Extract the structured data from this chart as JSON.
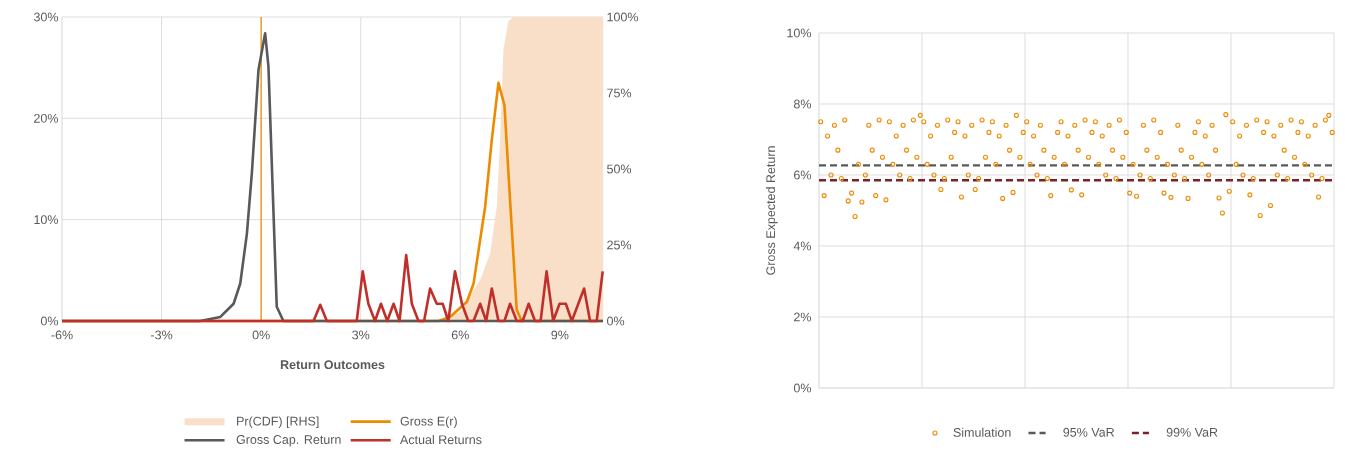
{
  "chart_data": [
    {
      "type": "line",
      "xlabel": "Return Outcomes",
      "xlim": [
        -6,
        10.3
      ],
      "xticks": [
        {
          "value": -6,
          "label": "-6%"
        },
        {
          "value": -3,
          "label": "-3%"
        },
        {
          "value": 0,
          "label": "0%"
        },
        {
          "value": 3,
          "label": "3%"
        },
        {
          "value": 6,
          "label": "6%"
        },
        {
          "value": 9,
          "label": "9%"
        }
      ],
      "ylim": [
        0,
        30
      ],
      "yticks": [
        {
          "value": 0,
          "label": "0%"
        },
        {
          "value": 10,
          "label": "10%"
        },
        {
          "value": 20,
          "label": "20%"
        },
        {
          "value": 30,
          "label": "30%"
        }
      ],
      "y2lim": [
        0,
        100
      ],
      "y2ticks": [
        {
          "value": 0,
          "label": "0%"
        },
        {
          "value": 25,
          "label": "25%"
        },
        {
          "value": 50,
          "label": "50%"
        },
        {
          "value": 75,
          "label": "75%"
        },
        {
          "value": 100,
          "label": "100%"
        }
      ],
      "grid": true,
      "legend": "bottom",
      "ref_lines": [
        {
          "axis": "x",
          "value": 0,
          "color": "#ed8b00"
        }
      ],
      "series": [
        {
          "name": "Pr(CDF) [RHS]",
          "type": "area",
          "axis": "y2",
          "color": "#fadfc8",
          "x": [
            -6,
            5.44,
            6.1,
            6.2,
            6.6,
            6.9,
            7.1,
            7.2,
            7.3,
            7.45,
            7.6,
            10.3
          ],
          "values": [
            0,
            0,
            3.6,
            6.9,
            13.5,
            22.3,
            37.7,
            59.7,
            89.3,
            98.7,
            100,
            100
          ]
        },
        {
          "name": "Gross E(r)",
          "type": "line",
          "color": "#ed8b00",
          "x": [
            -6,
            5.34,
            5.69,
            6.2,
            6.4,
            6.75,
            6.95,
            7.15,
            7.33,
            7.5,
            7.7,
            7.85,
            10.3
          ],
          "values": [
            0,
            0,
            0.4,
            1.9,
            3.7,
            11.3,
            17.9,
            23.5,
            21.3,
            11.9,
            1.1,
            0,
            0
          ]
        },
        {
          "name": "Gross Cap. Return",
          "type": "line",
          "color": "#595959",
          "x": [
            -6,
            -1.84,
            -1.23,
            -0.83,
            -0.63,
            -0.43,
            -0.28,
            -0.08,
            0.12,
            0.22,
            0.47,
            0.67,
            10.3
          ],
          "values": [
            0,
            0,
            0.4,
            1.7,
            3.7,
            8.6,
            14.6,
            24.8,
            28.4,
            25.1,
            1.4,
            0,
            0
          ]
        },
        {
          "name": "Actual Returns",
          "type": "line",
          "color": "#c0302a",
          "x": [
            -6,
            1.58,
            1.78,
            1.98,
            2.88,
            3.06,
            3.23,
            3.43,
            3.61,
            3.8,
            3.99,
            4.17,
            4.37,
            4.54,
            4.74,
            4.91,
            5.09,
            5.29,
            5.47,
            5.64,
            5.84,
            6.05,
            6.24,
            6.4,
            6.6,
            6.78,
            6.95,
            7.15,
            7.33,
            7.5,
            7.7,
            7.88,
            8.06,
            8.25,
            8.42,
            8.6,
            8.8,
            8.99,
            9.18,
            9.36,
            9.73,
            9.91,
            10.11,
            10.29
          ],
          "values": [
            0,
            0,
            1.6,
            0,
            0,
            4.9,
            1.7,
            0,
            1.7,
            0,
            1.7,
            0,
            6.5,
            1.7,
            0,
            0,
            3.2,
            1.7,
            1.7,
            0,
            4.9,
            1.7,
            0,
            0,
            1.7,
            0,
            3.2,
            0,
            0,
            1.7,
            0,
            0,
            1.7,
            0,
            0,
            4.9,
            0,
            1.7,
            1.7,
            0,
            3.2,
            0,
            0,
            4.9
          ]
        }
      ]
    },
    {
      "type": "scatter",
      "ylabel": "Gross Expected Return",
      "categories": [
        null,
        null,
        null,
        null,
        null,
        null,
        null,
        null,
        null,
        null,
        null,
        null,
        null,
        null,
        null,
        null,
        null,
        null,
        null,
        null,
        null,
        null,
        null,
        null,
        null,
        null,
        null,
        null,
        null,
        null,
        null,
        null,
        null,
        null,
        null,
        null,
        null,
        null,
        null,
        null,
        null,
        null,
        null,
        null,
        null,
        null,
        null,
        null,
        null,
        null,
        null,
        null,
        null,
        null,
        null,
        null,
        null,
        null,
        null,
        null,
        null,
        null,
        null,
        null,
        null,
        null,
        null,
        null,
        null,
        null,
        null,
        null,
        null,
        null,
        null,
        null,
        null,
        null,
        null,
        null,
        null,
        null,
        null,
        null,
        null,
        null,
        null,
        null,
        null,
        null,
        null,
        null,
        null,
        null,
        null,
        null,
        null,
        null,
        null,
        null,
        null,
        null,
        null,
        null,
        null,
        null,
        null,
        null,
        null,
        null,
        null,
        null,
        null,
        null,
        null,
        null,
        null,
        null,
        null,
        null,
        null,
        null,
        null,
        null,
        null,
        null,
        null,
        null,
        null,
        null,
        null,
        null,
        null,
        null,
        null,
        null,
        null,
        null,
        null,
        null,
        null,
        null,
        null,
        null,
        null,
        null,
        null,
        null,
        null,
        null
      ],
      "ylim": [
        0,
        10
      ],
      "yticks": [
        {
          "value": 0,
          "label": "0%"
        },
        {
          "value": 2,
          "label": "2%"
        },
        {
          "value": 4,
          "label": "4%"
        },
        {
          "value": 6,
          "label": "6%"
        },
        {
          "value": 8,
          "label": "8%"
        },
        {
          "value": 10,
          "label": "10%"
        }
      ],
      "grid": true,
      "legend": "bottom",
      "marker": "circle",
      "ref_lines": [
        {
          "axis": "y",
          "value": 6.27,
          "label": "95% VaR",
          "color": "#595959",
          "line_style": "dashed"
        },
        {
          "axis": "y",
          "value": 5.85,
          "label": "99% VaR",
          "color": "#7b2226",
          "line_style": "dashed"
        }
      ],
      "series": [
        {
          "name": "Simulation",
          "color": "#ed8b00",
          "values": [
            7.5,
            5.42,
            7.1,
            6.0,
            7.4,
            6.7,
            5.9,
            7.55,
            5.27,
            5.49,
            4.83,
            6.3,
            5.24,
            6.0,
            7.4,
            6.7,
            5.42,
            7.55,
            6.5,
            5.3,
            7.5,
            6.3,
            7.1,
            6.0,
            7.4,
            6.7,
            5.9,
            7.55,
            6.5,
            7.68,
            7.5,
            6.3,
            7.1,
            6.0,
            7.4,
            5.59,
            5.9,
            7.55,
            6.5,
            7.2,
            7.5,
            5.38,
            7.1,
            6.0,
            7.4,
            5.59,
            5.9,
            7.55,
            6.5,
            7.2,
            7.5,
            6.3,
            7.1,
            5.34,
            7.4,
            6.7,
            5.51,
            7.68,
            6.5,
            7.2,
            7.5,
            6.3,
            7.1,
            6.0,
            7.4,
            6.7,
            5.9,
            5.42,
            6.5,
            7.2,
            7.5,
            6.3,
            7.1,
            5.58,
            7.4,
            6.7,
            5.44,
            7.55,
            6.5,
            7.2,
            7.5,
            6.3,
            7.1,
            6.0,
            7.4,
            6.7,
            5.9,
            7.55,
            6.5,
            7.2,
            5.49,
            6.3,
            5.4,
            6.0,
            7.4,
            6.7,
            5.9,
            7.55,
            6.5,
            7.2,
            5.49,
            6.3,
            5.37,
            6.0,
            7.4,
            6.7,
            5.9,
            5.34,
            6.5,
            7.2,
            7.5,
            6.3,
            7.1,
            6.0,
            7.4,
            6.7,
            5.35,
            4.93,
            7.7,
            5.54,
            7.5,
            6.3,
            7.1,
            6.0,
            7.4,
            5.44,
            5.9,
            7.55,
            4.86,
            7.2,
            7.5,
            5.14,
            7.1,
            6.0,
            7.4,
            6.7,
            5.9,
            7.55,
            6.5,
            7.2,
            7.5,
            6.3,
            7.1,
            6.0,
            7.4,
            5.38,
            5.9,
            7.55,
            7.68,
            7.2
          ]
        }
      ]
    }
  ]
}
